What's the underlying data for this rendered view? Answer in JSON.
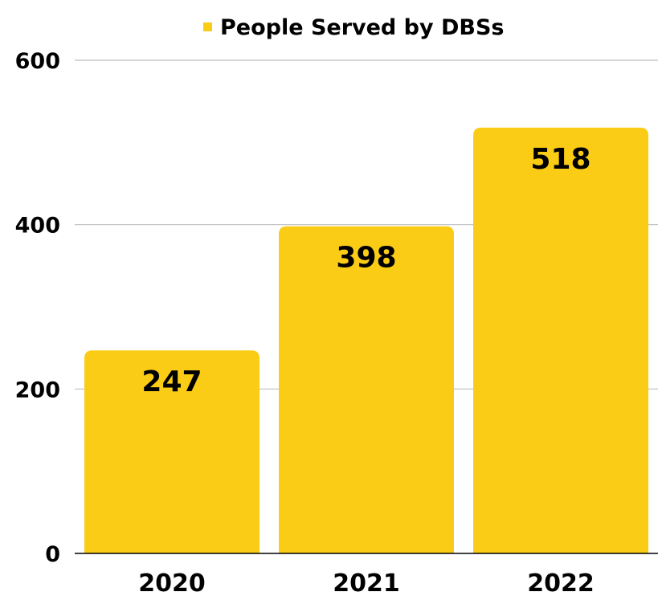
{
  "chart_data": {
    "type": "bar",
    "categories": [
      "2020",
      "2021",
      "2022"
    ],
    "series": [
      {
        "name": "People Served by DBSs",
        "values": [
          247,
          398,
          518
        ]
      }
    ],
    "data_labels": [
      "247",
      "398",
      "518"
    ],
    "yticks": [
      "0",
      "200",
      "400",
      "600"
    ],
    "ylim": [
      0,
      600
    ],
    "title": "",
    "xlabel": "",
    "ylabel": "",
    "grid": true,
    "legend_position": "top-center",
    "colors": {
      "bar": "#FACC15",
      "grid": "#BFBFBF",
      "axis": "#000000",
      "text": "#000000"
    }
  }
}
